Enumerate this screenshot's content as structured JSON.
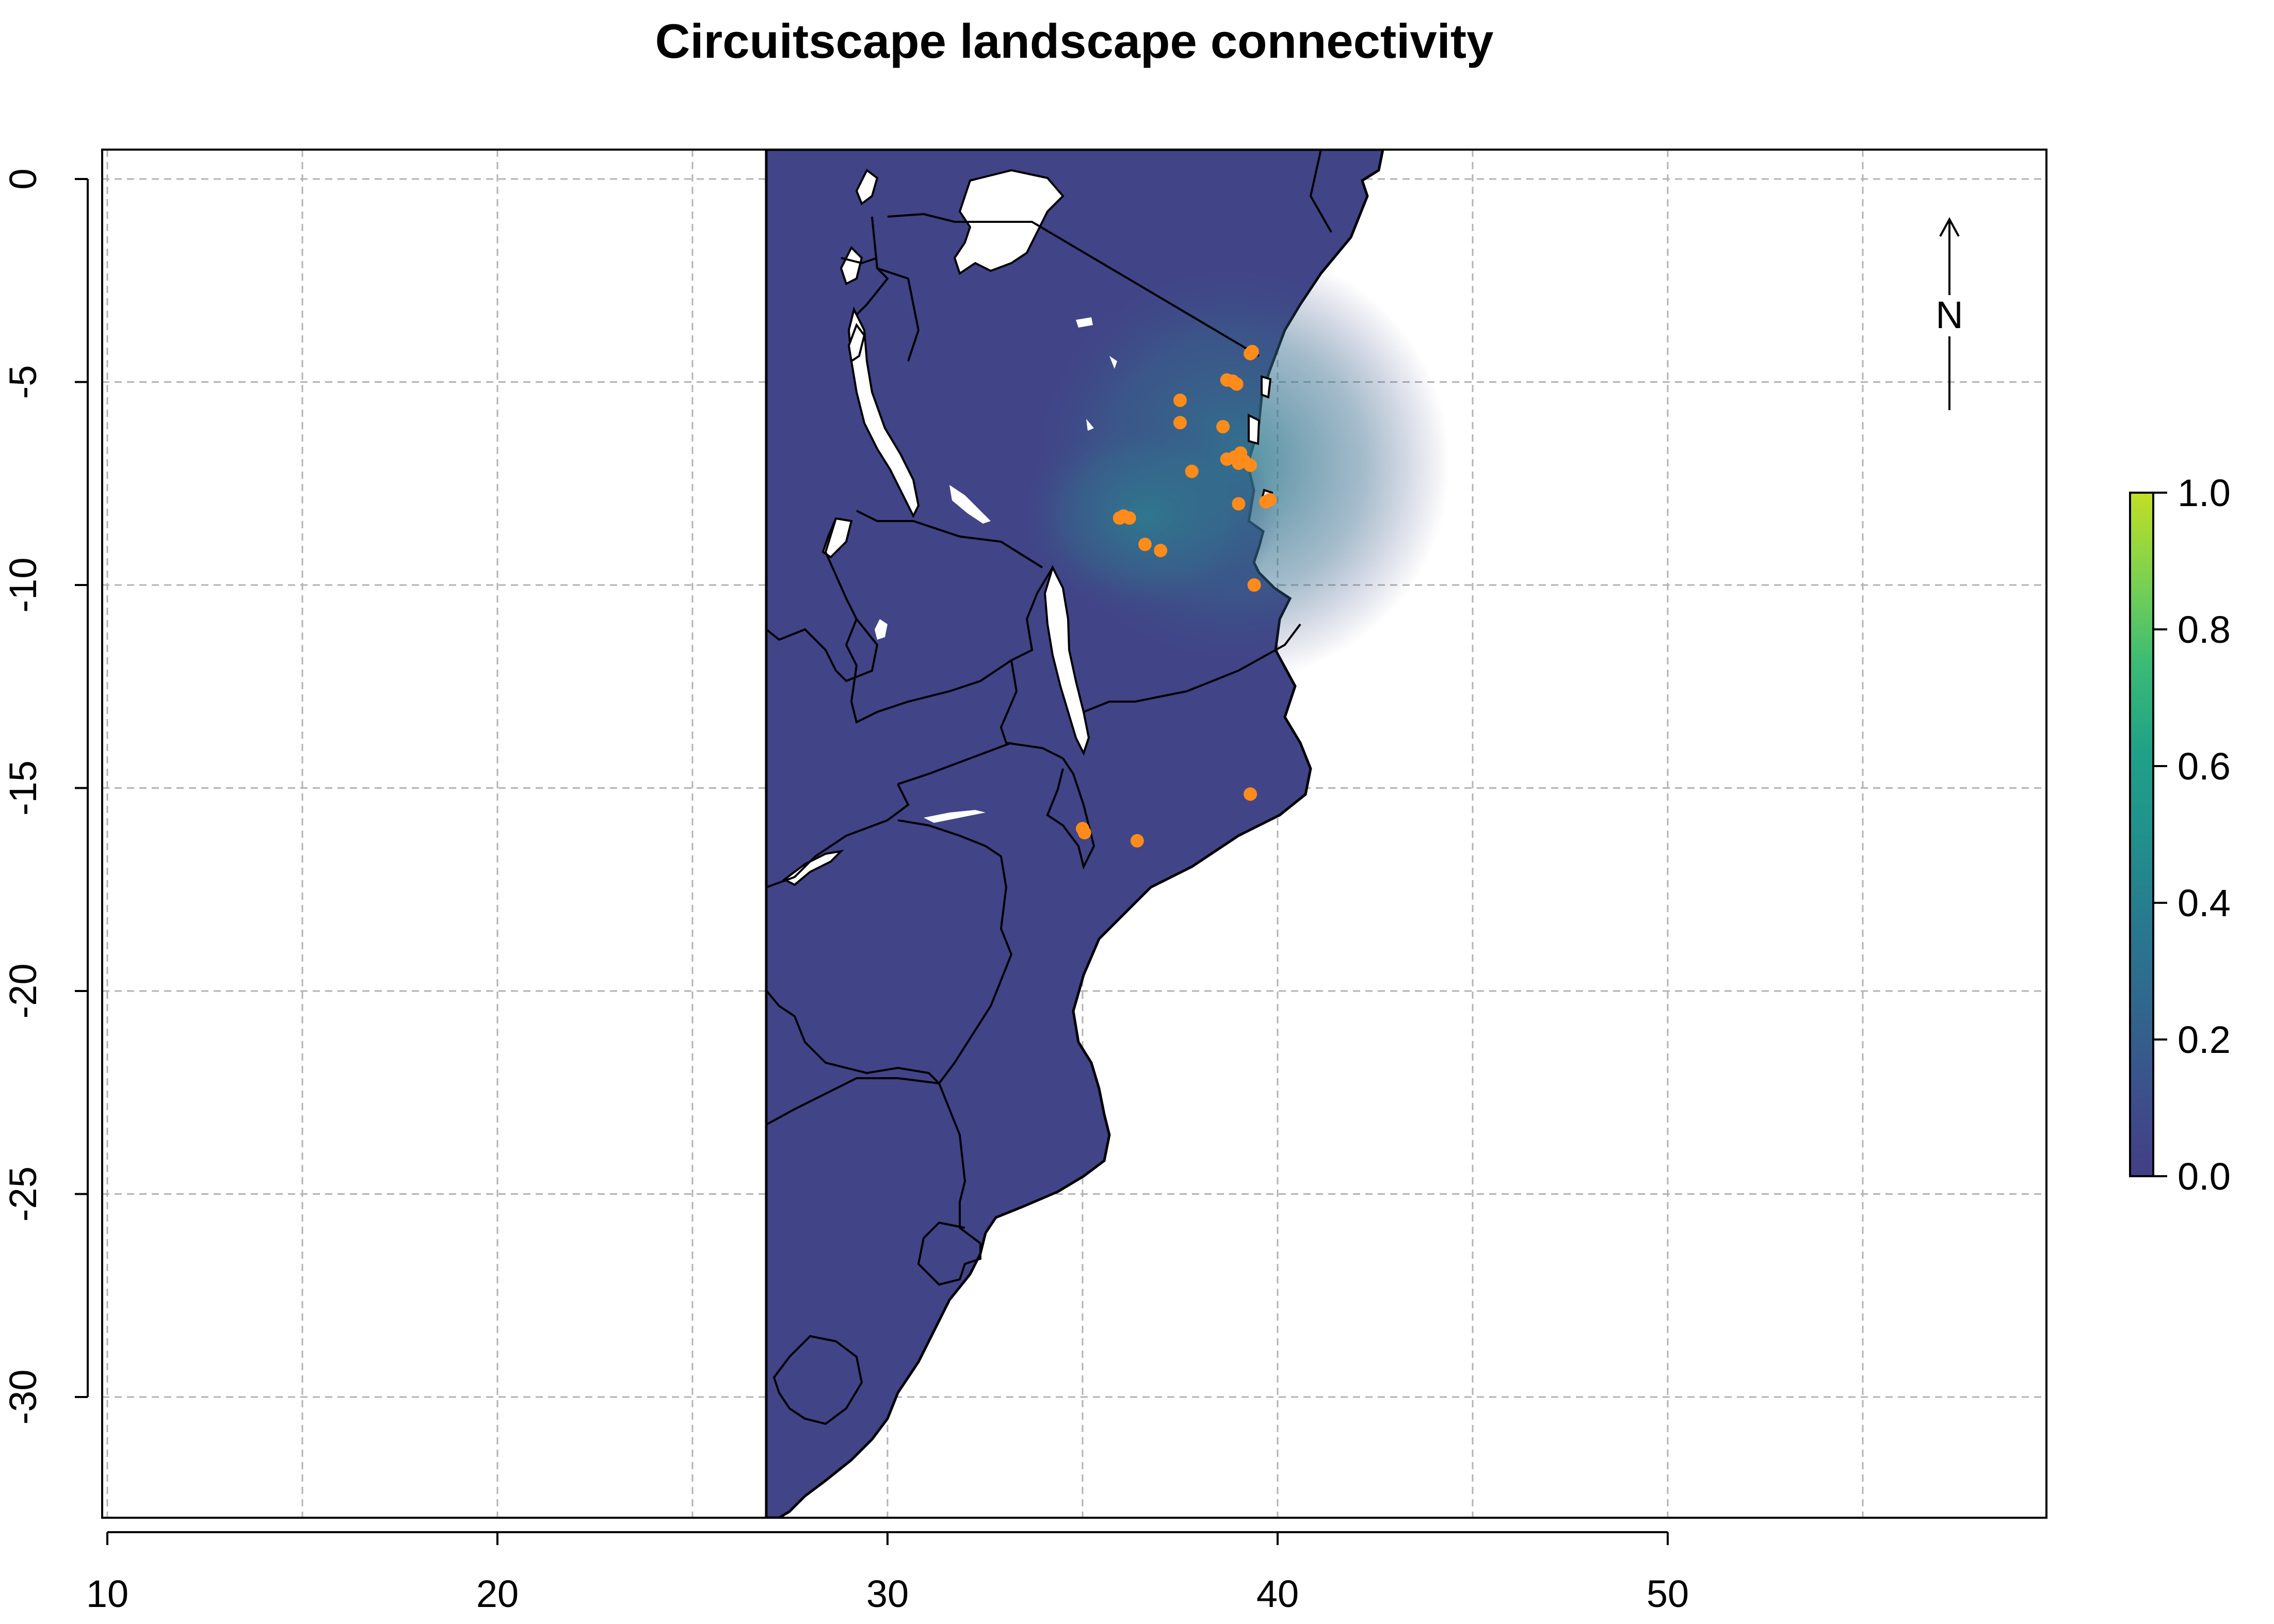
{
  "title": "Circuitscape landscape connectivity",
  "map": {
    "x_range": [
      9.5,
      59.5
    ],
    "y_range": [
      -33,
      0.7
    ],
    "x_ticks": [
      10,
      20,
      30,
      40,
      50
    ],
    "y_ticks": [
      0,
      -5,
      -10,
      -15,
      -20,
      -25,
      -30
    ],
    "x_tick_labels": [
      "10",
      "20",
      "30",
      "40",
      "50"
    ],
    "y_tick_labels": [
      "0",
      "-5",
      "-10",
      "-15",
      "-20",
      "-25",
      "-30"
    ],
    "grid_lines_x": [
      10,
      15,
      20,
      25,
      30,
      35,
      40,
      45,
      50,
      55
    ],
    "grid_lines_y": [
      0,
      -5,
      -10,
      -15,
      -20,
      -25,
      -30
    ],
    "grid": true,
    "raster_extent_lon": [
      27,
      42.8
    ],
    "raster_base_color": "#414487",
    "raster_highlight_color": "#2a788e",
    "point_color": "#ff8c1a",
    "north_arrow_label": "N",
    "occurrence_points": [
      {
        "lon": 39.3,
        "lat": -4.3
      },
      {
        "lon": 39.35,
        "lat": -4.25
      },
      {
        "lon": 37.5,
        "lat": -5.45
      },
      {
        "lon": 38.7,
        "lat": -4.95
      },
      {
        "lon": 38.85,
        "lat": -4.98
      },
      {
        "lon": 38.95,
        "lat": -5.05
      },
      {
        "lon": 37.5,
        "lat": -6.0
      },
      {
        "lon": 38.6,
        "lat": -6.1
      },
      {
        "lon": 38.7,
        "lat": -6.9
      },
      {
        "lon": 38.9,
        "lat": -6.85
      },
      {
        "lon": 39.05,
        "lat": -6.75
      },
      {
        "lon": 39.15,
        "lat": -6.95
      },
      {
        "lon": 39.3,
        "lat": -7.05
      },
      {
        "lon": 39.0,
        "lat": -7.0
      },
      {
        "lon": 37.8,
        "lat": -7.2
      },
      {
        "lon": 39.7,
        "lat": -7.95
      },
      {
        "lon": 39.8,
        "lat": -7.9
      },
      {
        "lon": 39.0,
        "lat": -8.0
      },
      {
        "lon": 35.95,
        "lat": -8.35
      },
      {
        "lon": 36.05,
        "lat": -8.3
      },
      {
        "lon": 36.2,
        "lat": -8.35
      },
      {
        "lon": 36.6,
        "lat": -9.0
      },
      {
        "lon": 37.0,
        "lat": -9.15
      },
      {
        "lon": 39.4,
        "lat": -10.0
      },
      {
        "lon": 39.3,
        "lat": -15.15
      },
      {
        "lon": 35.0,
        "lat": -16.0
      },
      {
        "lon": 35.05,
        "lat": -16.1
      },
      {
        "lon": 36.4,
        "lat": -16.3
      }
    ]
  },
  "legend": {
    "labels": [
      "1.0",
      "0.8",
      "0.6",
      "0.4",
      "0.2",
      "0.0"
    ],
    "values": [
      1.0,
      0.8,
      0.6,
      0.4,
      0.2,
      0.0
    ],
    "colormap": "viridis",
    "colors": [
      "#440154",
      "#414487",
      "#2a788e",
      "#22a884",
      "#7ad151",
      "#c2df23"
    ]
  }
}
